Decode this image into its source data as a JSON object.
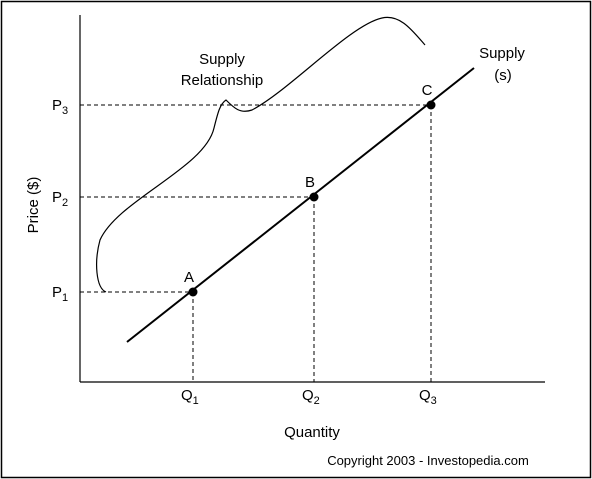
{
  "diagram": {
    "y_axis_label": "Price ($)",
    "x_axis_label": "Quantity",
    "curve_label": [
      "Supply",
      "(s)"
    ],
    "brace_label": [
      "Supply",
      "Relationship"
    ],
    "points": [
      {
        "label": "A",
        "price": {
          "main": "P",
          "sub": "1"
        },
        "quantity": {
          "main": "Q",
          "sub": "1"
        }
      },
      {
        "label": "B",
        "price": {
          "main": "P",
          "sub": "2"
        },
        "quantity": {
          "main": "Q",
          "sub": "2"
        }
      },
      {
        "label": "C",
        "price": {
          "main": "P",
          "sub": "3"
        },
        "quantity": {
          "main": "Q",
          "sub": "3"
        }
      }
    ],
    "copyright": "Copyright 2003 - Investopedia.com"
  }
}
